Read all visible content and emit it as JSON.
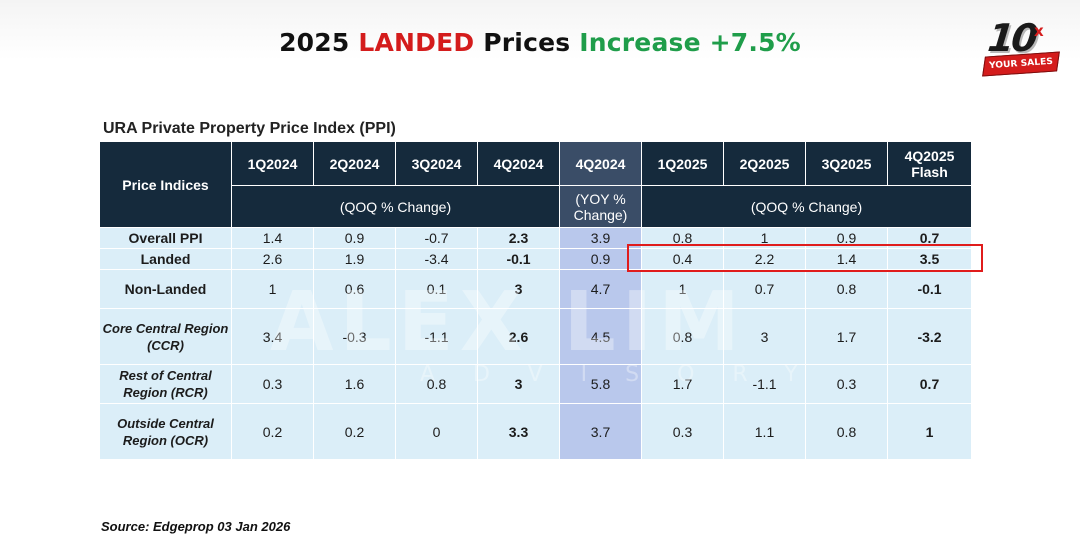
{
  "title": {
    "part1": "2025 ",
    "part2": "LANDED",
    "part3": " Prices ",
    "part4": "Increase +7.5%",
    "colors": {
      "black": "#111111",
      "red": "#d41c1c",
      "green": "#1f9d4a"
    }
  },
  "logo": {
    "number": "10",
    "x": "x",
    "banner": "YOUR SALES"
  },
  "table": {
    "caption": "URA Private Property Price Index (PPI)",
    "corner_header": "Price Indices",
    "quarters": [
      "1Q2024",
      "2Q2024",
      "3Q2024",
      "4Q2024",
      "4Q2024",
      "1Q2025",
      "2Q2025",
      "3Q2025",
      "4Q2025 Flash"
    ],
    "sub_left": "(QOQ % Change)",
    "sub_mid": "(YOY % Change)",
    "sub_right": "(QOQ % Change)",
    "rows": [
      {
        "label": "Overall PPI",
        "values": [
          "1.4",
          "0.9",
          "-0.7",
          "2.3",
          "3.9",
          "0.8",
          "1",
          "0.9",
          "0.7"
        ]
      },
      {
        "label": "Landed",
        "values": [
          "2.6",
          "1.9",
          "-3.4",
          "-0.1",
          "0.9",
          "0.4",
          "2.2",
          "1.4",
          "3.5"
        ]
      },
      {
        "label": "Non-Landed",
        "values": [
          "1",
          "0.6",
          "0.1",
          "3",
          "4.7",
          "1",
          "0.7",
          "0.8",
          "-0.1"
        ]
      },
      {
        "label": "Core Central Region (CCR)",
        "values": [
          "3.4",
          "-0.3",
          "-1.1",
          "2.6",
          "4.5",
          "0.8",
          "3",
          "1.7",
          "-3.2"
        ]
      },
      {
        "label": "Rest of Central Region (RCR)",
        "values": [
          "0.3",
          "1.6",
          "0.8",
          "3",
          "5.8",
          "1.7",
          "-1.1",
          "0.3",
          "0.7"
        ]
      },
      {
        "label": "Outside Central Region (OCR)",
        "values": [
          "0.2",
          "0.2",
          "0",
          "3.3",
          "3.7",
          "0.3",
          "1.1",
          "0.8",
          "1"
        ]
      }
    ],
    "colors": {
      "header": "#152a3c",
      "cell": "#dbeef8",
      "highlight_col": "#b9c8ec",
      "highlight_box": "#e01c1c"
    }
  },
  "watermark": {
    "main": "ALEX LIM",
    "sub": "ADVISORY"
  },
  "source": "Source: Edgeprop 03 Jan 2026"
}
